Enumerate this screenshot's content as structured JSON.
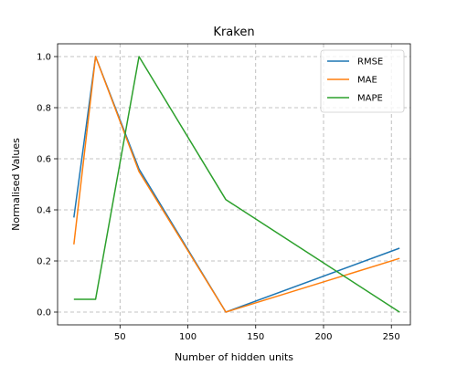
{
  "chart_data": {
    "type": "line",
    "title": "Kraken",
    "xlabel": "Number of hidden units",
    "ylabel": "Normalised Values",
    "xlim": [
      4,
      264
    ],
    "ylim": [
      -0.05,
      1.05
    ],
    "xticks": [
      50,
      100,
      150,
      200,
      250
    ],
    "yticks": [
      0.0,
      0.2,
      0.4,
      0.6,
      0.8,
      1.0
    ],
    "x": [
      16,
      32,
      64,
      128,
      256
    ],
    "grid": true,
    "legend_position": "top-right",
    "series": [
      {
        "name": "RMSE",
        "color": "#1f77b4",
        "values": [
          0.37,
          1.0,
          0.56,
          0.0,
          0.25
        ]
      },
      {
        "name": "MAE",
        "color": "#ff7f0e",
        "values": [
          0.265,
          1.0,
          0.55,
          0.0,
          0.21
        ]
      },
      {
        "name": "MAPE",
        "color": "#2ca02c",
        "values": [
          0.05,
          0.05,
          1.0,
          0.44,
          0.0
        ]
      }
    ]
  }
}
